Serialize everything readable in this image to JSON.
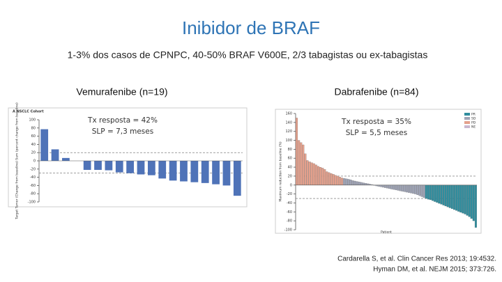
{
  "title": "Inibidor de BRAF",
  "subtitle": "1-3% dos casos de CPNPC, 40-50% BRAF V600E, 2/3 tabagistas ou ex-tabagistas",
  "citations": [
    "Cardarella S, et al. Clin Cancer Res 2013; 19:4532.",
    "Hyman DM, et al. NEJM 2015; 373:726."
  ],
  "chart_data": [
    {
      "type": "bar",
      "heading": "Vemurafenibe (n=19)",
      "panel_title": "A  NSCLC Cohort",
      "ylabel": "Target Tumor (Change from baseline) Sum (percent change from baseline)",
      "annotations": [
        "Tx resposta = 42%",
        "SLP = 7,3 meses"
      ],
      "color": "#4f73b8",
      "values": [
        77,
        28,
        7,
        0,
        -22,
        -22,
        -23,
        -28,
        -30,
        -33,
        -35,
        -43,
        -48,
        -50,
        -52,
        -54,
        -57,
        -60,
        -85
      ],
      "ylim": [
        -100,
        100
      ],
      "yticks": [
        100,
        80,
        60,
        40,
        20,
        0,
        -20,
        -40,
        -60,
        -80,
        -100
      ],
      "ref_lines": [
        20,
        -30
      ]
    },
    {
      "type": "bar",
      "heading": "Dabrafenibe (n=84)",
      "xlabel": "Patient",
      "ylabel": "Maximum reduction from baseline (%)",
      "annotations": [
        "Tx resposta = 35%",
        "SLP = 5,5 meses"
      ],
      "legend": [
        {
          "name": "PR",
          "color": "#2f8d9e"
        },
        {
          "name": "SD",
          "color": "#9ea3b5"
        },
        {
          "name": "PD",
          "color": "#e4a08c"
        },
        {
          "name": "NE",
          "color": "#c9b7cf"
        }
      ],
      "values": [
        150,
        100,
        95,
        90,
        70,
        55,
        52,
        50,
        48,
        45,
        42,
        40,
        38,
        35,
        30,
        28,
        26,
        24,
        22,
        20,
        18,
        16,
        15,
        14,
        13,
        12,
        10,
        9,
        8,
        7,
        6,
        5,
        4,
        3,
        2,
        1,
        -1,
        -2,
        -3,
        -4,
        -5,
        -6,
        -7,
        -8,
        -9,
        -10,
        -11,
        -12,
        -13,
        -14,
        -15,
        -16,
        -17,
        -18,
        -19,
        -20,
        -22,
        -24,
        -26,
        -28,
        -30,
        -32,
        -33,
        -35,
        -37,
        -39,
        -41,
        -43,
        -45,
        -47,
        -49,
        -51,
        -53,
        -55,
        -57,
        -59,
        -61,
        -63,
        -65,
        -68,
        -71,
        -75,
        -80,
        -95
      ],
      "colors": [
        "#e4a08c",
        "#e4a08c",
        "#e4a08c",
        "#e4a08c",
        "#e4a08c",
        "#e4a08c",
        "#e4a08c",
        "#e4a08c",
        "#e4a08c",
        "#e4a08c",
        "#e4a08c",
        "#e4a08c",
        "#e4a08c",
        "#e4a08c",
        "#e4a08c",
        "#e4a08c",
        "#e4a08c",
        "#e4a08c",
        "#e4a08c",
        "#e4a08c",
        "#e4a08c",
        "#e4a08c",
        "#9ea3b5",
        "#9ea3b5",
        "#9ea3b5",
        "#9ea3b5",
        "#9ea3b5",
        "#9ea3b5",
        "#9ea3b5",
        "#9ea3b5",
        "#9ea3b5",
        "#9ea3b5",
        "#9ea3b5",
        "#9ea3b5",
        "#9ea3b5",
        "#9ea3b5",
        "#9ea3b5",
        "#9ea3b5",
        "#9ea3b5",
        "#9ea3b5",
        "#9ea3b5",
        "#9ea3b5",
        "#9ea3b5",
        "#9ea3b5",
        "#9ea3b5",
        "#9ea3b5",
        "#9ea3b5",
        "#9ea3b5",
        "#9ea3b5",
        "#9ea3b5",
        "#9ea3b5",
        "#9ea3b5",
        "#9ea3b5",
        "#9ea3b5",
        "#9ea3b5",
        "#9ea3b5",
        "#9ea3b5",
        "#9ea3b5",
        "#9ea3b5",
        "#9ea3b5",
        "#2f8d9e",
        "#2f8d9e",
        "#2f8d9e",
        "#2f8d9e",
        "#2f8d9e",
        "#2f8d9e",
        "#2f8d9e",
        "#2f8d9e",
        "#2f8d9e",
        "#2f8d9e",
        "#2f8d9e",
        "#2f8d9e",
        "#2f8d9e",
        "#2f8d9e",
        "#2f8d9e",
        "#2f8d9e",
        "#2f8d9e",
        "#2f8d9e",
        "#2f8d9e",
        "#2f8d9e",
        "#2f8d9e",
        "#2f8d9e",
        "#2f8d9e",
        "#2f8d9e"
      ],
      "ylim": [
        -100,
        160
      ],
      "yticks": [
        160,
        140,
        120,
        100,
        80,
        60,
        40,
        20,
        0,
        -20,
        -40,
        -60,
        -80,
        -100
      ],
      "ref_lines": [
        20,
        -30
      ]
    }
  ]
}
